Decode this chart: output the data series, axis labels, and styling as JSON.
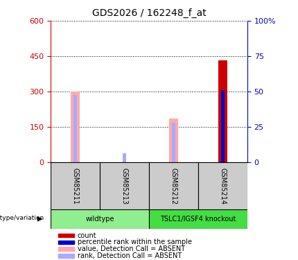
{
  "title": "GDS2026 / 162248_f_at",
  "samples": [
    "GSM85211",
    "GSM85213",
    "GSM85212",
    "GSM85214"
  ],
  "groups": [
    {
      "label": "wildtype",
      "color": "#90ee90",
      "samples": [
        0,
        1
      ]
    },
    {
      "label": "TSLC1/IGSF4 knockout",
      "color": "#44dd44",
      "samples": [
        2,
        3
      ]
    }
  ],
  "ylim_left": [
    0,
    600
  ],
  "ylim_right": [
    0,
    100
  ],
  "yticks_left": [
    0,
    150,
    300,
    450,
    600
  ],
  "yticks_right": [
    0,
    25,
    50,
    75,
    100
  ],
  "left_axis_color": "#cc0000",
  "right_axis_color": "#0000cc",
  "bars": [
    {
      "sample_idx": 0,
      "value_absent": 302,
      "rank_absent": 285,
      "count": null,
      "percentile": null
    },
    {
      "sample_idx": 1,
      "value_absent": null,
      "rank_absent": 40,
      "count": null,
      "percentile": null
    },
    {
      "sample_idx": 2,
      "value_absent": 185,
      "rank_absent": 168,
      "count": null,
      "percentile": null
    },
    {
      "sample_idx": 3,
      "value_absent": null,
      "rank_absent": null,
      "count": 432,
      "percentile": 305
    }
  ],
  "color_value_absent": "#ffaaaa",
  "color_rank_absent": "#aaaaff",
  "color_count": "#cc0000",
  "color_percentile": "#0000cc",
  "wide_bar_width": 0.18,
  "narrow_bar_width": 0.08,
  "legend_items": [
    {
      "label": "count",
      "color": "#cc0000"
    },
    {
      "label": "percentile rank within the sample",
      "color": "#0000cc"
    },
    {
      "label": "value, Detection Call = ABSENT",
      "color": "#ffaaaa"
    },
    {
      "label": "rank, Detection Call = ABSENT",
      "color": "#aaaaff"
    }
  ],
  "genotype_label": "genotype/variation"
}
